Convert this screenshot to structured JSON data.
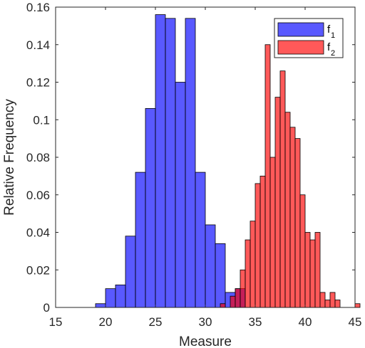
{
  "chart_data": {
    "type": "bar",
    "subtype": "overlapping-histogram",
    "title": "",
    "xlabel": "Measure",
    "ylabel": "Relative Frequency",
    "xlim": [
      15,
      45
    ],
    "ylim": [
      0,
      0.16
    ],
    "xticks": [
      15,
      20,
      25,
      30,
      35,
      40,
      45
    ],
    "yticks": [
      0,
      0.02,
      0.04,
      0.06,
      0.08,
      0.1,
      0.12,
      0.14,
      0.16
    ],
    "ytick_labels": [
      "0",
      "0.02",
      "0.04",
      "0.06",
      "0.08",
      "0.1",
      "0.12",
      "0.14",
      "0.16"
    ],
    "grid": false,
    "legend_position": "top-right",
    "series": [
      {
        "name": "f",
        "name_subscript": "1",
        "color": "#0000ff",
        "alpha": 0.65,
        "bin_width": 1,
        "bin_edges_start": 19,
        "values": [
          0.002,
          0.01,
          0.012,
          0.038,
          0.072,
          0.106,
          0.156,
          0.154,
          0.12,
          0.154,
          0.072,
          0.044,
          0.034,
          0.008,
          0.01
        ]
      },
      {
        "name": "f",
        "name_subscript": "2",
        "color": "#ff0000",
        "alpha": 0.65,
        "bin_width": 0.5,
        "bin_edges_start": 31.5,
        "values": [
          0.002,
          0.0,
          0.006,
          0.01,
          0.02,
          0.036,
          0.046,
          0.066,
          0.07,
          0.14,
          0.08,
          0.112,
          0.126,
          0.104,
          0.096,
          0.09,
          0.06,
          0.04,
          0.036,
          0.04,
          0.008,
          0.004,
          0.008,
          0.004,
          0.0,
          0.0,
          0.0,
          0.002,
          0.0,
          0.0,
          0.0,
          0.0,
          0.0,
          0.002
        ]
      }
    ]
  }
}
